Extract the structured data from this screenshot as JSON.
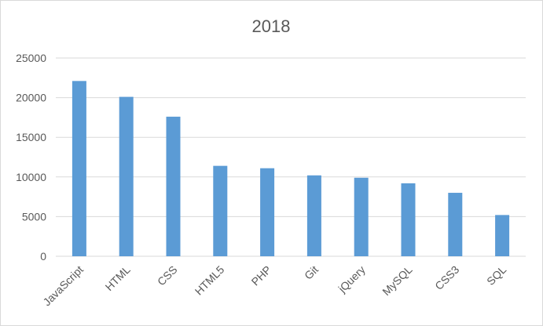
{
  "chart_data": {
    "type": "bar",
    "title": "2018",
    "xlabel": "",
    "ylabel": "",
    "categories": [
      "JavaScript",
      "HTML",
      "CSS",
      "HTML5",
      "PHP",
      "Git",
      "jQuery",
      "MySQL",
      "CSS3",
      "SQL"
    ],
    "values": [
      22100,
      20100,
      17600,
      11400,
      11100,
      10200,
      9900,
      9200,
      8000,
      5200
    ],
    "ylim": [
      0,
      25000
    ],
    "yticks": [
      "0",
      "5000",
      "10000",
      "15000",
      "20000",
      "25000"
    ],
    "bar_color": "#5b9bd5",
    "grid": true,
    "legend": "none"
  }
}
